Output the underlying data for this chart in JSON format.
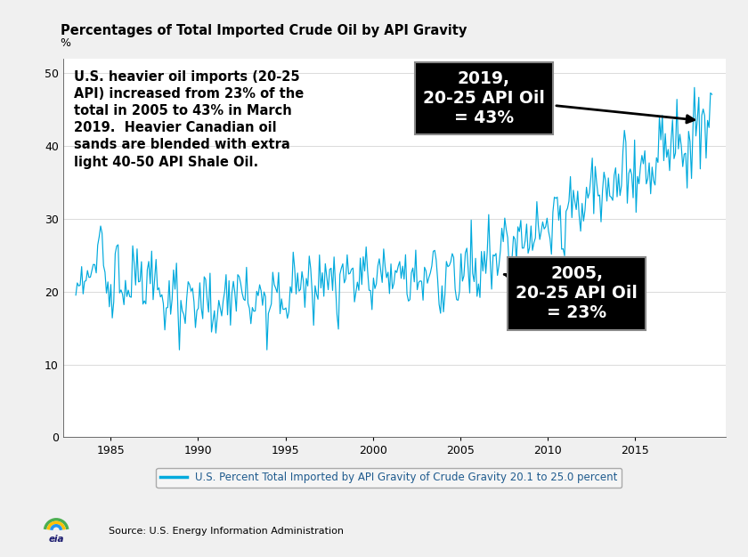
{
  "title": "Percentages of Total Imported Crude Oil by API Gravity",
  "ylabel": "%",
  "legend_label": "U.S. Percent Total Imported by API Gravity of Crude Gravity 20.1 to 25.0 percent",
  "annotation_2019_text": "2019,\n20-25 API Oil\n= 43%",
  "annotation_2005_text": "2005,\n20-25 API Oil\n= 23%",
  "note_text": "U.S. heavier oil imports (20-25\nAPI) increased from 23% of the\ntotal in 2005 to 43% in March\n2019.  Heavier Canadian oil\nsands are blended with extra\nlight 40-50 API Shale Oil.",
  "source_text": "Source: U.S. Energy Information Administration",
  "line_color": "#00AADD",
  "legend_text_color": "#1F5B8E",
  "bg_color": "#ffffff",
  "outer_bg": "#f0f0f0",
  "ylim": [
    0,
    52
  ],
  "yticks": [
    0,
    10,
    20,
    30,
    40,
    50
  ],
  "xlim_start": 1982.3,
  "xlim_end": 2020.2,
  "xticks": [
    1985,
    1990,
    1995,
    2000,
    2005,
    2010,
    2015
  ],
  "start_year": 1983.0,
  "end_year": 2019.42
}
